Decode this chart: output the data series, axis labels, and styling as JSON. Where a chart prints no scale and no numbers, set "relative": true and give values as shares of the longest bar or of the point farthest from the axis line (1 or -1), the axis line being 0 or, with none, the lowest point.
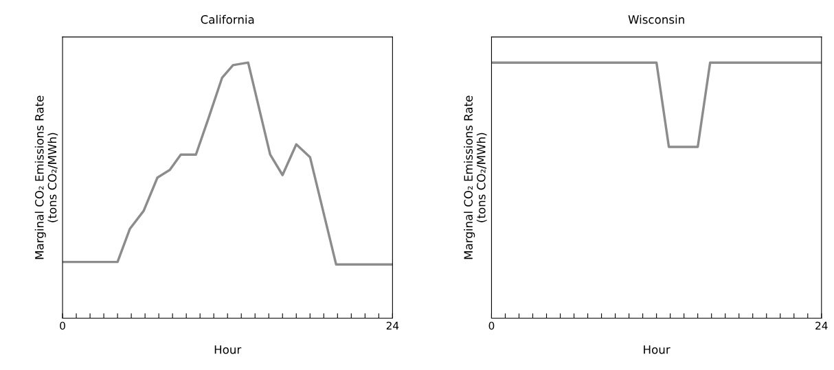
{
  "chart_data": [
    {
      "type": "line",
      "title": "California",
      "xlabel": "Hour",
      "ylabel": "Marginal CO₂ Emissions Rate\n(tons CO₂/MWh)",
      "relative": true,
      "xlim": [
        0,
        24
      ],
      "xticks": [
        0,
        {
          "value": 1,
          "label": null
        },
        {
          "value": 2,
          "label": null
        },
        {
          "value": 3,
          "label": null
        },
        {
          "value": 4,
          "label": null
        },
        {
          "value": 5,
          "label": null
        },
        {
          "value": 6,
          "label": null
        },
        {
          "value": 7,
          "label": null
        },
        {
          "value": 8,
          "label": null
        },
        {
          "value": 9,
          "label": null
        },
        {
          "value": 10,
          "label": null
        },
        {
          "value": 11,
          "label": null
        },
        {
          "value": 12,
          "label": null
        },
        {
          "value": 13,
          "label": null
        },
        {
          "value": 14,
          "label": null
        },
        {
          "value": 15,
          "label": null
        },
        {
          "value": 16,
          "label": null
        },
        {
          "value": 17,
          "label": null
        },
        {
          "value": 18,
          "label": null
        },
        {
          "value": 19,
          "label": null
        },
        {
          "value": 20,
          "label": null
        },
        {
          "value": 21,
          "label": null
        },
        {
          "value": 22,
          "label": null
        },
        {
          "value": 23,
          "label": null
        },
        24
      ],
      "tick_labels": "x",
      "grid": false,
      "legend": false,
      "series": [
        {
          "color": "#8c8c8c",
          "x": [
            0,
            4,
            4.9,
            5.9,
            6.9,
            7.8,
            8.6,
            9.7,
            10.6,
            11.6,
            12.4,
            13.5,
            15.1,
            16,
            17,
            18,
            19.9,
            24
          ],
          "values": [
            0.22,
            0.22,
            0.35,
            0.42,
            0.55,
            0.58,
            0.64,
            0.64,
            0.78,
            0.94,
            0.99,
            1,
            0.64,
            0.56,
            0.68,
            0.63,
            0.21,
            0.21
          ]
        }
      ]
    },
    {
      "type": "line",
      "title": "Wisconsin",
      "xlabel": "Hour",
      "ylabel": "Marginal CO₂ Emissions Rate\n(tons CO₂/MWh)",
      "relative": true,
      "xlim": [
        0,
        24
      ],
      "xticks": [
        0,
        {
          "value": 1,
          "label": null
        },
        {
          "value": 2,
          "label": null
        },
        {
          "value": 3,
          "label": null
        },
        {
          "value": 4,
          "label": null
        },
        {
          "value": 5,
          "label": null
        },
        {
          "value": 6,
          "label": null
        },
        {
          "value": 7,
          "label": null
        },
        {
          "value": 8,
          "label": null
        },
        {
          "value": 9,
          "label": null
        },
        {
          "value": 10,
          "label": null
        },
        {
          "value": 11,
          "label": null
        },
        {
          "value": 12,
          "label": null
        },
        {
          "value": 13,
          "label": null
        },
        {
          "value": 14,
          "label": null
        },
        {
          "value": 15,
          "label": null
        },
        {
          "value": 16,
          "label": null
        },
        {
          "value": 17,
          "label": null
        },
        {
          "value": 18,
          "label": null
        },
        {
          "value": 19,
          "label": null
        },
        {
          "value": 20,
          "label": null
        },
        {
          "value": 21,
          "label": null
        },
        {
          "value": 22,
          "label": null
        },
        {
          "value": 23,
          "label": null
        },
        24
      ],
      "tick_labels": "x",
      "grid": false,
      "legend": false,
      "series": [
        {
          "color": "#8c8c8c",
          "x": [
            0,
            12,
            12.9,
            15,
            15.9,
            24
          ],
          "values": [
            1,
            1,
            0.67,
            0.67,
            1,
            1
          ]
        }
      ]
    }
  ]
}
